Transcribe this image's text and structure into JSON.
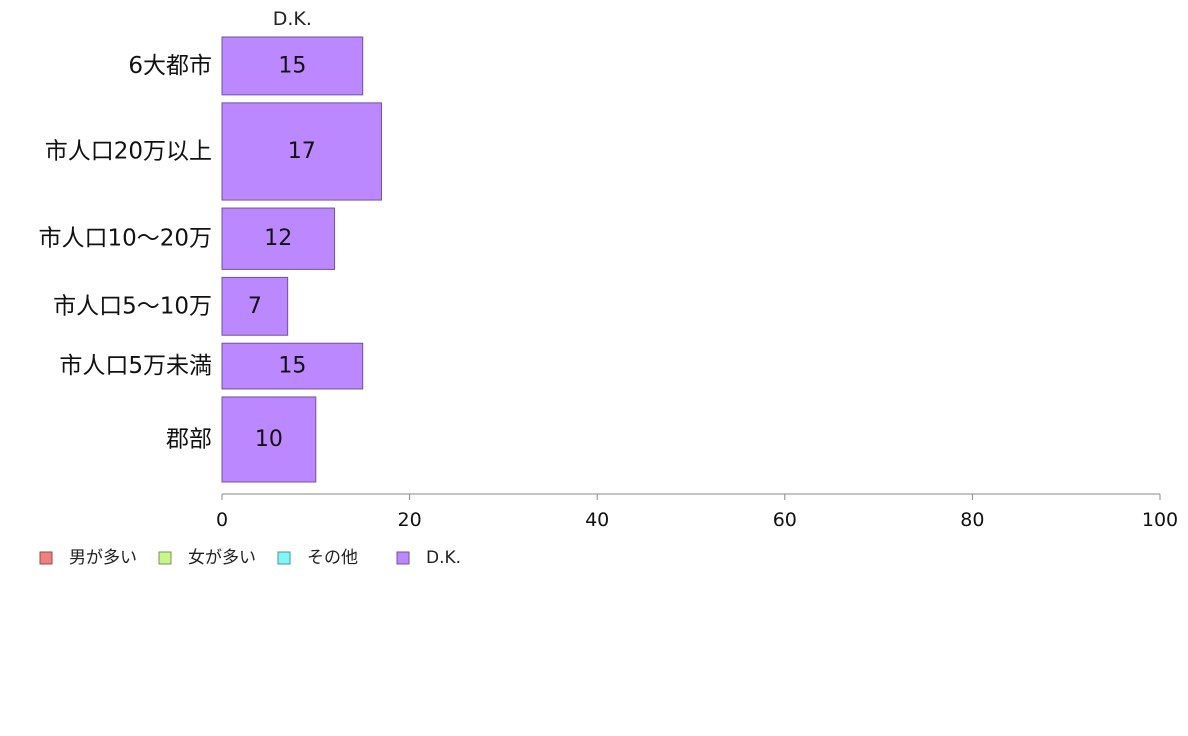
{
  "chart_data": {
    "type": "bar",
    "orientation": "horizontal",
    "stacked": true,
    "title": "",
    "xlabel": "",
    "ylabel": "",
    "xlim": [
      0,
      100
    ],
    "x_ticks": [
      0,
      20,
      40,
      60,
      80,
      100
    ],
    "grid": false,
    "legend_position": "bottom-left",
    "categories": [
      "6大都市",
      "市人口20万以上",
      "市人口10〜20万",
      "市人口5〜10万",
      "市人口5万未満",
      "郡部"
    ],
    "category_weights": [
      1,
      1.68,
      1.06,
      1.0,
      0.79,
      1.47
    ],
    "series": [
      {
        "name": "男が多い",
        "color": "#f08080",
        "values": [
          0,
          0,
          0,
          0,
          0,
          0
        ]
      },
      {
        "name": "女が多い",
        "color": "#c8f58c",
        "values": [
          0,
          0,
          0,
          0,
          0,
          0
        ]
      },
      {
        "name": "その他",
        "color": "#7ff7f7",
        "values": [
          0,
          0,
          0,
          0,
          0,
          0
        ]
      },
      {
        "name": "D.K.",
        "color": "#bb88ff",
        "values": [
          15,
          17,
          12,
          7,
          15,
          10
        ]
      }
    ],
    "top_series_labels": [
      "D.K."
    ]
  }
}
